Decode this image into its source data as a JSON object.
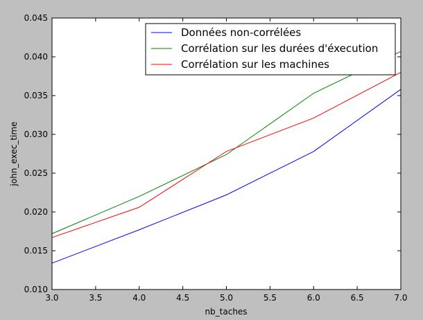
{
  "chart_data": {
    "type": "line",
    "title": "",
    "xlabel": "nb_taches",
    "ylabel": "john_exec_time",
    "xlim": [
      3.0,
      7.0
    ],
    "ylim": [
      0.01,
      0.045
    ],
    "x_ticks": [
      "3.0",
      "3.5",
      "4.0",
      "4.5",
      "5.0",
      "5.5",
      "6.0",
      "6.5",
      "7.0"
    ],
    "y_ticks": [
      "0.010",
      "0.015",
      "0.020",
      "0.025",
      "0.030",
      "0.035",
      "0.040",
      "0.045"
    ],
    "grid": false,
    "legend_position": "top-right",
    "x": [
      3,
      4,
      5,
      6,
      7
    ],
    "series": [
      {
        "name": "Données non-corrélées",
        "color": "#0000ff",
        "values": [
          0.0134,
          0.0177,
          0.0222,
          0.0278,
          0.0358
        ]
      },
      {
        "name": "Corrélation sur les durées d'éxecution",
        "color": "#008000",
        "values": [
          0.0172,
          0.022,
          0.0274,
          0.0353,
          0.0407
        ]
      },
      {
        "name": "Corrélation sur les machines",
        "color": "#ff0000",
        "values": [
          0.0167,
          0.0206,
          0.0278,
          0.0321,
          0.038
        ]
      }
    ]
  }
}
